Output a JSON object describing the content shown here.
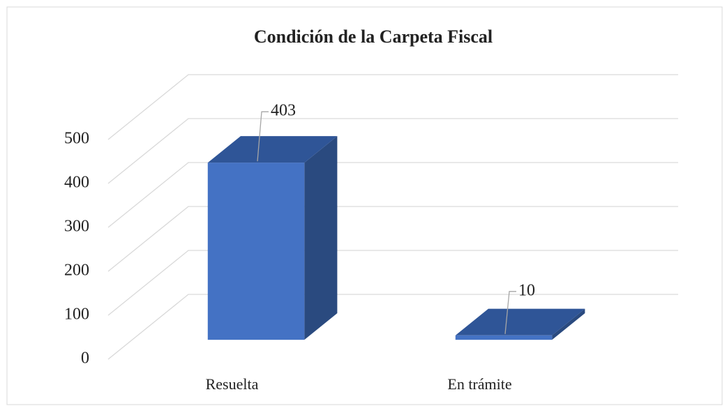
{
  "chart_data": {
    "type": "bar3d",
    "title": "Condición de la Carpeta Fiscal",
    "categories": [
      "Resuelta",
      "En trámite"
    ],
    "values": [
      403,
      10
    ],
    "color": "#4472c4",
    "top_color": "#2f5597",
    "side_color": "#2a4a7f",
    "ylim": [
      0,
      500
    ],
    "yticks": [
      0,
      100,
      200,
      300,
      400,
      500
    ],
    "grid": true
  }
}
